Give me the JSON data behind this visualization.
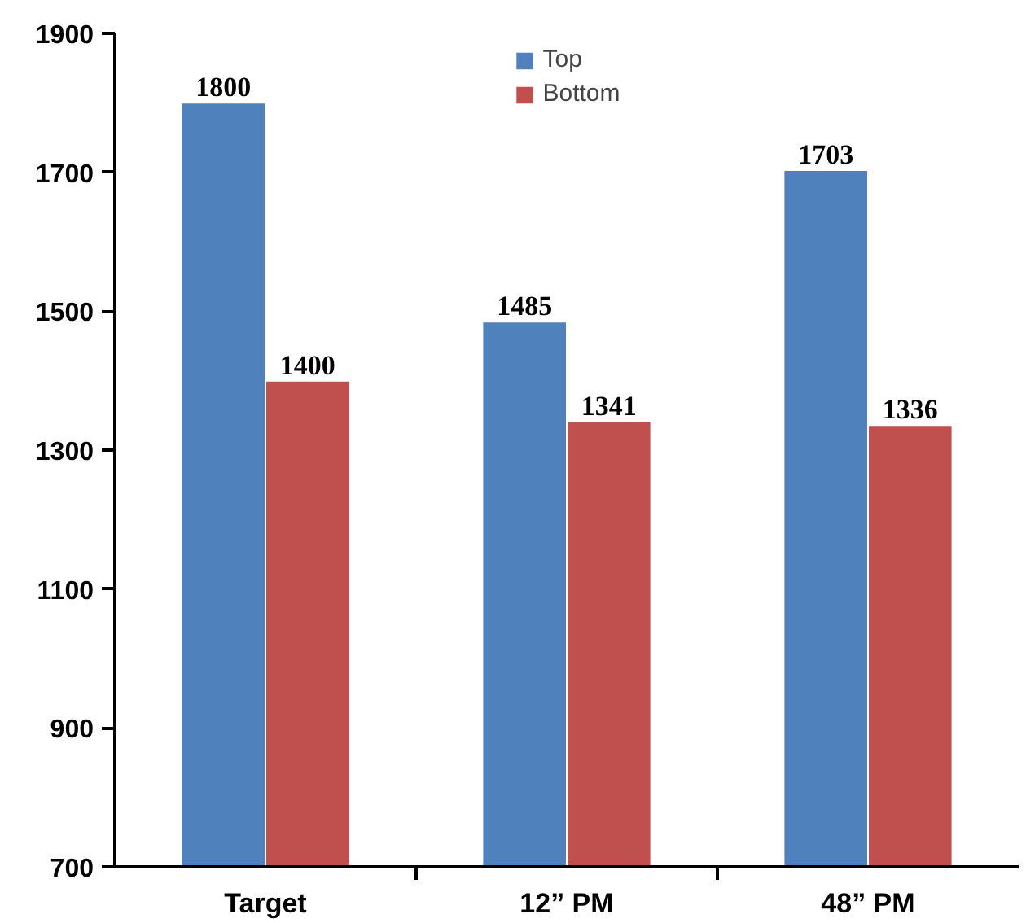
{
  "chart_data": {
    "type": "bar",
    "categories": [
      "Target",
      "12” PM",
      "48” PM"
    ],
    "series": [
      {
        "name": "Top",
        "color": "#4f81bd",
        "values": [
          1800,
          1485,
          1703
        ]
      },
      {
        "name": "Bottom",
        "color": "#c0504d",
        "values": [
          1400,
          1341,
          1336
        ]
      }
    ],
    "ylim": [
      700,
      1900
    ],
    "yticks": [
      700,
      900,
      1100,
      1300,
      1500,
      1700,
      1900
    ],
    "data_labels": true,
    "grid": false,
    "legend": "top"
  }
}
